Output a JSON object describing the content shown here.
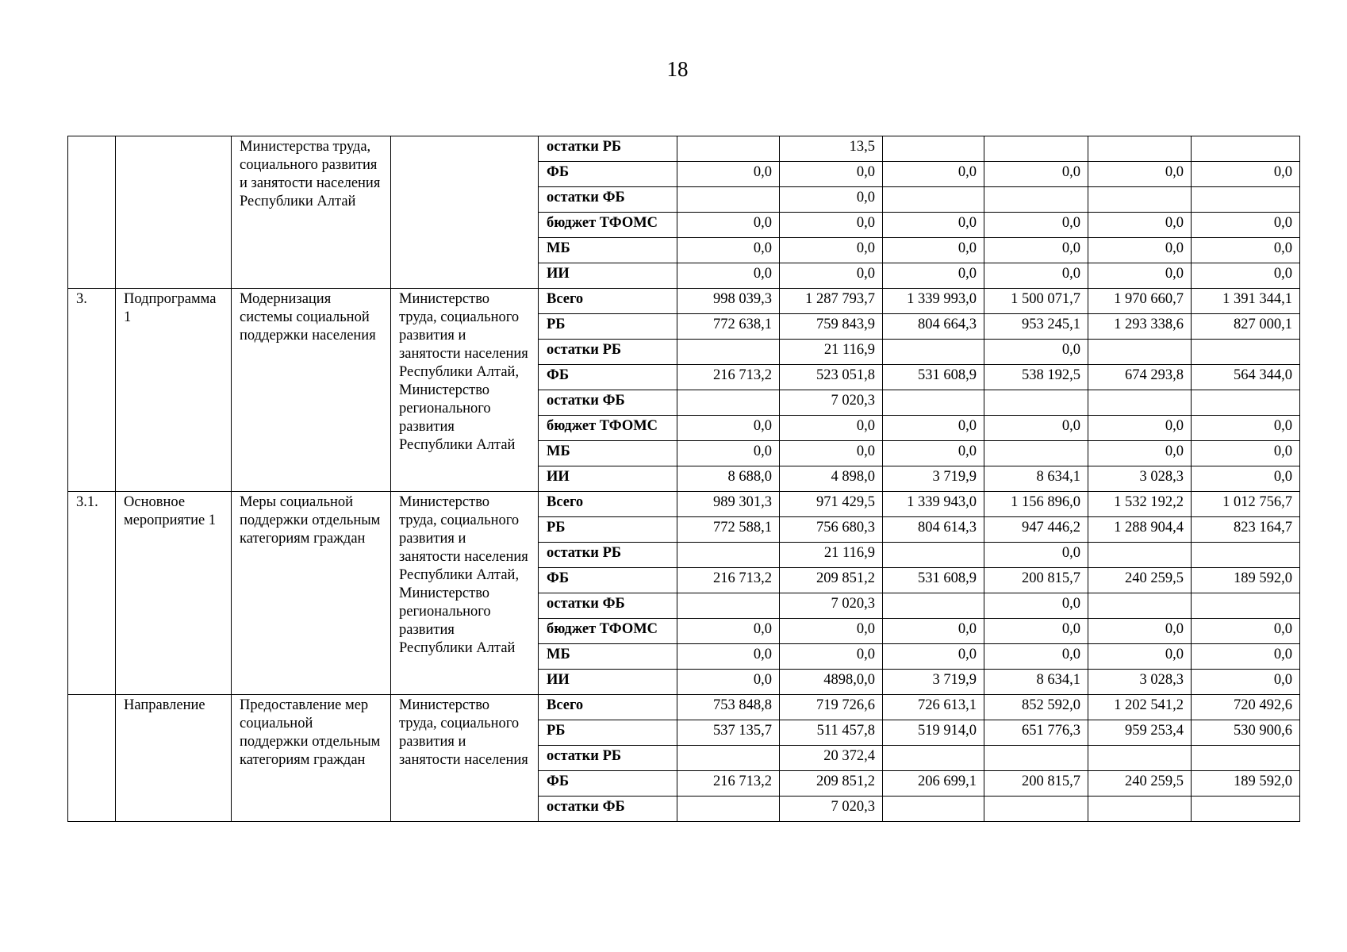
{
  "page_number": "18",
  "sections": [
    {
      "code": "",
      "status": "",
      "name": "Министерства труда, социального развития и занятости населения Республики Алтай",
      "executor": "",
      "rows": [
        {
          "label": "остатки РБ",
          "values": [
            "",
            "13,5",
            "",
            "",
            "",
            ""
          ]
        },
        {
          "label": "ФБ",
          "values": [
            "0,0",
            "0,0",
            "0,0",
            "0,0",
            "0,0",
            "0,0"
          ]
        },
        {
          "label": "остатки ФБ",
          "values": [
            "",
            "0,0",
            "",
            "",
            "",
            ""
          ]
        },
        {
          "label": "бюджет ТФОМС",
          "values": [
            "0,0",
            "0,0",
            "0,0",
            "0,0",
            "0,0",
            "0,0"
          ]
        },
        {
          "label": "МБ",
          "values": [
            "0,0",
            "0,0",
            "0,0",
            "0,0",
            "0,0",
            "0,0"
          ]
        },
        {
          "label": "ИИ",
          "values": [
            "0,0",
            "0,0",
            "0,0",
            "0,0",
            "0,0",
            "0,0"
          ]
        }
      ]
    },
    {
      "code": "3.",
      "status": "Подпрограмма 1",
      "name": "Модернизация системы социальной поддержки населения",
      "executor": "Министерство труда, социального развития и занятости населения Республики Алтай, Министерство регионального развития Республики Алтай",
      "rows": [
        {
          "label": "Всего",
          "values": [
            "998 039,3",
            "1 287 793,7",
            "1 339 993,0",
            "1 500 071,7",
            "1 970 660,7",
            "1 391 344,1"
          ]
        },
        {
          "label": "РБ",
          "values": [
            "772 638,1",
            "759 843,9",
            "804 664,3",
            "953 245,1",
            "1 293 338,6",
            "827 000,1"
          ]
        },
        {
          "label": "остатки РБ",
          "values": [
            "",
            "21 116,9",
            "",
            "0,0",
            "",
            ""
          ]
        },
        {
          "label": "ФБ",
          "values": [
            "216 713,2",
            "523 051,8",
            "531 608,9",
            "538 192,5",
            "674 293,8",
            "564 344,0"
          ]
        },
        {
          "label": "остатки ФБ",
          "values": [
            "",
            "7 020,3",
            "",
            "",
            "",
            ""
          ]
        },
        {
          "label": "бюджет ТФОМС",
          "values": [
            "0,0",
            "0,0",
            "0,0",
            "0,0",
            "0,0",
            "0,0"
          ]
        },
        {
          "label": "МБ",
          "values": [
            "0,0",
            "0,0",
            "0,0",
            "",
            "0,0",
            "0,0"
          ]
        },
        {
          "label": "ИИ",
          "values": [
            "8 688,0",
            "4 898,0",
            "3 719,9",
            "8 634,1",
            "3 028,3",
            "0,0"
          ]
        }
      ]
    },
    {
      "code": "3.1.",
      "status": "Основное мероприятие 1",
      "name": "Меры социальной поддержки отдельным категориям граждан",
      "executor": "Министерство труда, социального развития и занятости населения Республики Алтай, Министерство регионального развития Республики Алтай",
      "rows": [
        {
          "label": "Всего",
          "values": [
            "989 301,3",
            "971 429,5",
            "1 339 943,0",
            "1 156 896,0",
            "1 532 192,2",
            "1 012 756,7"
          ]
        },
        {
          "label": "РБ",
          "values": [
            "772 588,1",
            "756 680,3",
            "804 614,3",
            "947 446,2",
            "1 288 904,4",
            "823 164,7"
          ]
        },
        {
          "label": "остатки РБ",
          "values": [
            "",
            "21 116,9",
            "",
            "0,0",
            "",
            ""
          ]
        },
        {
          "label": "ФБ",
          "values": [
            "216 713,2",
            "209 851,2",
            "531 608,9",
            "200 815,7",
            "240 259,5",
            "189 592,0"
          ]
        },
        {
          "label": "остатки ФБ",
          "values": [
            "",
            "7 020,3",
            "",
            "0,0",
            "",
            ""
          ]
        },
        {
          "label": "бюджет ТФОМС",
          "values": [
            "0,0",
            "0,0",
            "0,0",
            "0,0",
            "0,0",
            "0,0"
          ]
        },
        {
          "label": "МБ",
          "values": [
            "0,0",
            "0,0",
            "0,0",
            "0,0",
            "0,0",
            "0,0"
          ]
        },
        {
          "label": "ИИ",
          "values": [
            "0,0",
            "4898,0,0",
            "3 719,9",
            "8 634,1",
            "3 028,3",
            "0,0"
          ]
        }
      ]
    },
    {
      "code": "",
      "status": "Направление",
      "name": "Предоставление мер социальной поддержки отдельным категориям граждан",
      "executor": "Министерство труда, социального развития и занятости населения",
      "rows": [
        {
          "label": "Всего",
          "values": [
            "753 848,8",
            "719 726,6",
            "726 613,1",
            "852 592,0",
            "1 202 541,2",
            "720 492,6"
          ]
        },
        {
          "label": "РБ",
          "values": [
            "537 135,7",
            "511 457,8",
            "519 914,0",
            "651 776,3",
            "959 253,4",
            "530 900,6"
          ]
        },
        {
          "label": "остатки РБ",
          "values": [
            "",
            "20 372,4",
            "",
            "",
            "",
            ""
          ]
        },
        {
          "label": "ФБ",
          "values": [
            "216 713,2",
            "209 851,2",
            "206 699,1",
            "200 815,7",
            "240 259,5",
            "189 592,0"
          ]
        },
        {
          "label": "остатки ФБ",
          "values": [
            "",
            "7 020,3",
            "",
            "",
            "",
            ""
          ]
        }
      ]
    }
  ]
}
